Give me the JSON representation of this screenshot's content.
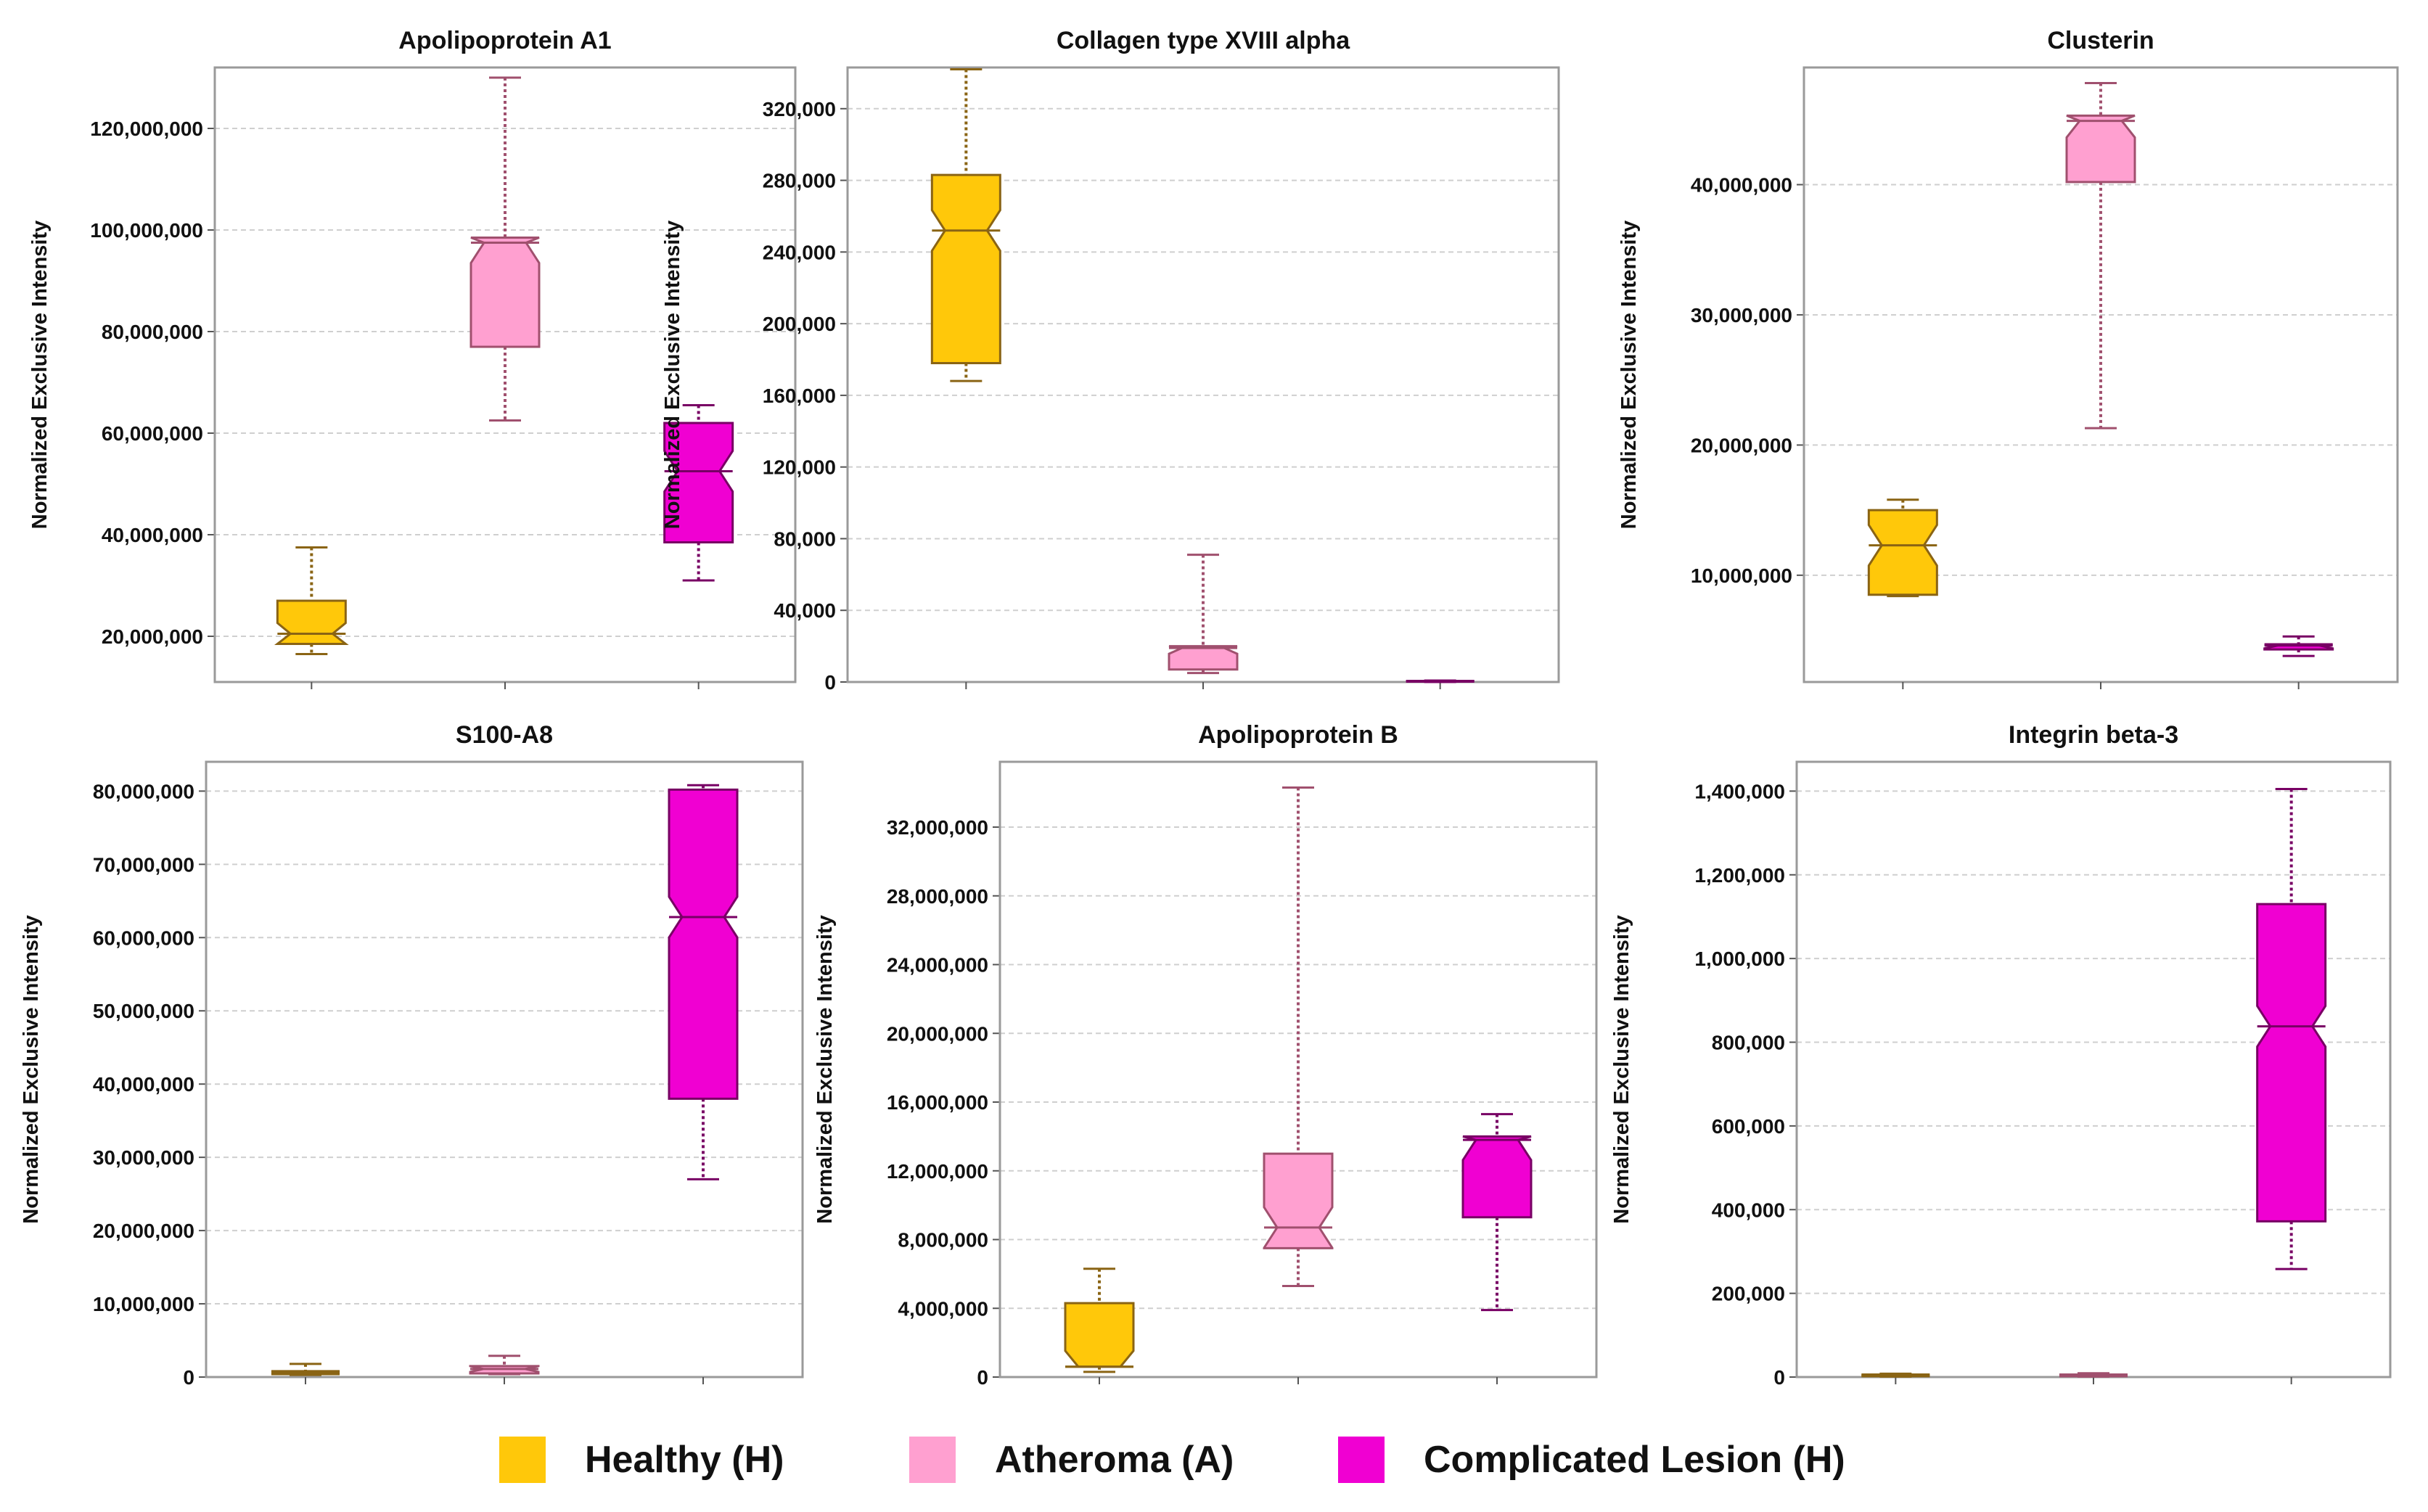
{
  "colors": {
    "healthy_fill": "#ffc80a",
    "healthy_stroke": "#8a6414",
    "atheroma_fill": "#ffa0d0",
    "atheroma_stroke": "#a0506e",
    "lesion_fill": "#f000d2",
    "lesion_stroke": "#780064",
    "grid": "#cfcfcf",
    "frame": "#9a9a9a"
  },
  "legend": [
    {
      "label": "Healthy (H)",
      "color": "#ffc80a"
    },
    {
      "label": "Atheroma (A)",
      "color": "#ffa0d0"
    },
    {
      "label": "Complicated Lesion (H)",
      "color": "#f000d2"
    }
  ],
  "chart_data": [
    {
      "type": "boxplot",
      "title": "Apolipoprotein A1",
      "ylabel": "Normalized Exclusive Intensity",
      "ylim": [
        11000000,
        132000000
      ],
      "yticks": [
        20000000,
        40000000,
        60000000,
        80000000,
        100000000,
        120000000
      ],
      "ytick_labels": [
        "20,000,000",
        "40,000,000",
        "60,000,000",
        "80,000,000",
        "100,000,000",
        "120,000,000"
      ],
      "groups": [
        "Healthy (H)",
        "Atheroma (A)",
        "Complicated Lesion (H)"
      ],
      "boxes": [
        {
          "min": 16500000,
          "q1": 18500000,
          "median": 20500000,
          "q3": 27000000,
          "max": 37500000
        },
        {
          "min": 62500000,
          "q1": 77000000,
          "median": 97500000,
          "q3": 98500000,
          "max": 130000000
        },
        {
          "min": 31000000,
          "q1": 38500000,
          "median": 52500000,
          "q3": 62000000,
          "max": 65500000
        }
      ]
    },
    {
      "type": "boxplot",
      "title": "Collagen type XVIII alpha",
      "ylabel": "Normalized Exclusive Intensity",
      "ylim": [
        0,
        343000
      ],
      "yticks": [
        0,
        40000,
        80000,
        120000,
        160000,
        200000,
        240000,
        280000,
        320000
      ],
      "ytick_labels": [
        "0",
        "40,000",
        "80,000",
        "120,000",
        "160,000",
        "200,000",
        "240,000",
        "280,000",
        "320,000"
      ],
      "groups": [
        "Healthy (H)",
        "Atheroma (A)",
        "Complicated Lesion (H)"
      ],
      "boxes": [
        {
          "min": 168000,
          "q1": 178000,
          "median": 252000,
          "q3": 283000,
          "max": 342000
        },
        {
          "min": 5000,
          "q1": 7000,
          "median": 19000,
          "q3": 20000,
          "max": 71000
        },
        {
          "min": 0,
          "q1": 200,
          "median": 400,
          "q3": 600,
          "max": 800
        }
      ]
    },
    {
      "type": "boxplot",
      "title": "Clusterin",
      "ylabel": "Normalized Exclusive Intensity",
      "ylim": [
        1800000,
        49000000
      ],
      "yticks": [
        10000000,
        20000000,
        30000000,
        40000000
      ],
      "ytick_labels": [
        "10,000,000",
        "20,000,000",
        "30,000,000",
        "40,000,000"
      ],
      "groups": [
        "Healthy (H)",
        "Atheroma (A)",
        "Complicated Lesion (H)"
      ],
      "boxes": [
        {
          "min": 8400000,
          "q1": 8500000,
          "median": 12300000,
          "q3": 15000000,
          "max": 15800000
        },
        {
          "min": 21300000,
          "q1": 40200000,
          "median": 44900000,
          "q3": 45300000,
          "max": 47800000
        },
        {
          "min": 3800000,
          "q1": 4300000,
          "median": 4600000,
          "q3": 4700000,
          "max": 5300000
        }
      ]
    },
    {
      "type": "boxplot",
      "title": "S100-A8",
      "ylabel": "Normalized Exclusive Intensity",
      "ylim": [
        0,
        84000000
      ],
      "yticks": [
        0,
        10000000,
        20000000,
        30000000,
        40000000,
        50000000,
        60000000,
        70000000,
        80000000
      ],
      "ytick_labels": [
        "0",
        "10,000,000",
        "20,000,000",
        "30,000,000",
        "40,000,000",
        "50,000,000",
        "60,000,000",
        "70,000,000",
        "80,000,000"
      ],
      "groups": [
        "Healthy (H)",
        "Atheroma (A)",
        "Complicated Lesion (H)"
      ],
      "boxes": [
        {
          "min": 300000,
          "q1": 400000,
          "median": 600000,
          "q3": 800000,
          "max": 1800000
        },
        {
          "min": 400000,
          "q1": 500000,
          "median": 1100000,
          "q3": 1500000,
          "max": 2900000
        },
        {
          "min": 27000000,
          "q1": 38000000,
          "median": 62800000,
          "q3": 80200000,
          "max": 80800000
        }
      ]
    },
    {
      "type": "boxplot",
      "title": "Apolipoprotein B",
      "ylabel": "Normalized Exclusive Intensity",
      "ylim": [
        0,
        35800000
      ],
      "yticks": [
        0,
        4000000,
        8000000,
        12000000,
        16000000,
        20000000,
        24000000,
        28000000,
        32000000
      ],
      "ytick_labels": [
        "0",
        "4,000,000",
        "8,000,000",
        "12,000,000",
        "16,000,000",
        "20,000,000",
        "24,000,000",
        "28,000,000",
        "32,000,000"
      ],
      "groups": [
        "Healthy (H)",
        "Atheroma (A)",
        "Complicated Lesion (H)"
      ],
      "boxes": [
        {
          "min": 300000,
          "q1": 600000,
          "median": 600000,
          "q3": 4300000,
          "max": 6300000
        },
        {
          "min": 5300000,
          "q1": 7500000,
          "median": 8700000,
          "q3": 13000000,
          "max": 34300000
        },
        {
          "min": 3900000,
          "q1": 9300000,
          "median": 13800000,
          "q3": 14000000,
          "max": 15300000
        }
      ]
    },
    {
      "type": "boxplot",
      "title": "Integrin beta-3",
      "ylabel": "Normalized Exclusive Intensity",
      "ylim": [
        0,
        1470000
      ],
      "yticks": [
        0,
        200000,
        400000,
        600000,
        800000,
        1000000,
        1200000,
        1400000
      ],
      "ytick_labels": [
        "0",
        "200,000",
        "400,000",
        "600,000",
        "800,000",
        "1,000,000",
        "1,200,000",
        "1,400,000"
      ],
      "groups": [
        "Healthy (H)",
        "Atheroma (A)",
        "Complicated Lesion (H)"
      ],
      "boxes": [
        {
          "min": 1000,
          "q1": 2000,
          "median": 4000,
          "q3": 6000,
          "max": 8000
        },
        {
          "min": 1000,
          "q1": 2000,
          "median": 4000,
          "q3": 6000,
          "max": 9000
        },
        {
          "min": 258000,
          "q1": 372000,
          "median": 838000,
          "q3": 1130000,
          "max": 1405000
        }
      ]
    }
  ]
}
